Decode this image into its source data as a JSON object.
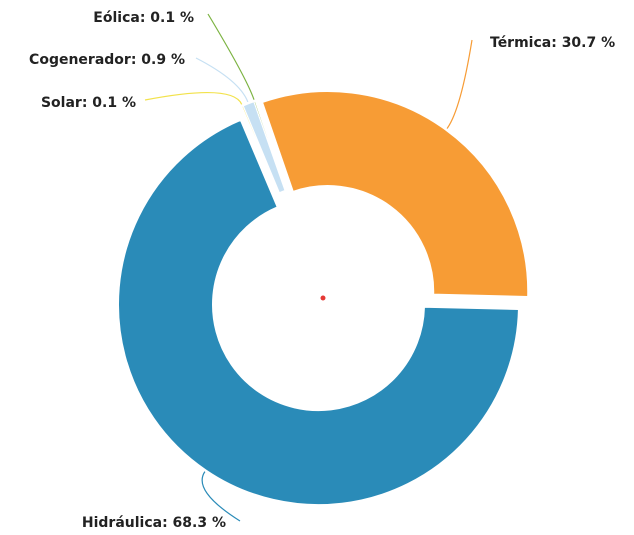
{
  "chart_data": {
    "type": "donut",
    "values": [
      30.7,
      68.3,
      0.1,
      0.9,
      0.1
    ],
    "value_labels": [
      "Térmica: 30.7 %",
      "Hidráulica: 68.3 %",
      "Solar: 0.1 %",
      "Cogenerador: 0.9 %",
      "Eólica: 0.1 %"
    ],
    "colors": [
      "#f79c35",
      "#2a8bb8",
      "#f2e24b",
      "#c6e0f3",
      "#7cb342"
    ]
  }
}
